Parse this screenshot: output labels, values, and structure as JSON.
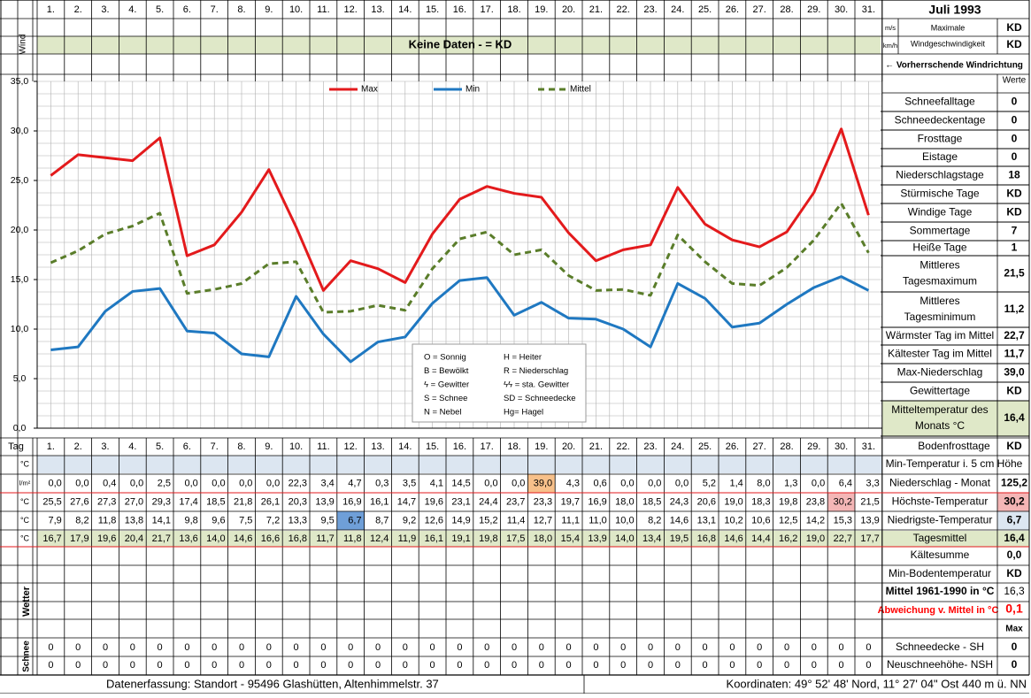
{
  "title": "Juli 1993",
  "days": [
    "1.",
    "2.",
    "3.",
    "4.",
    "5.",
    "6.",
    "7.",
    "8.",
    "9.",
    "10.",
    "11.",
    "12.",
    "13.",
    "14.",
    "15.",
    "16.",
    "17.",
    "18.",
    "19.",
    "20.",
    "21.",
    "22.",
    "23.",
    "24.",
    "25.",
    "26.",
    "27.",
    "28.",
    "29.",
    "30.",
    "31."
  ],
  "wind": {
    "label": "Wind",
    "no_data": "Keine Daten -  = KD",
    "unit_ms": "m/s",
    "unit_kmh": "km/h",
    "max_label_1": "Maximale",
    "max_label_2": "Windgeschwindigkeit",
    "max_ms": "KD",
    "max_kmh": "KD",
    "direction_label": "← Vorherrschende Windrichtung"
  },
  "legend": {
    "max": "Max",
    "min": "Min",
    "mittel": "Mittel"
  },
  "colors": {
    "max": "#e31a1c",
    "min": "#1f78c1",
    "mittel": "#5a7d2a",
    "header_green": "#dfe8c8",
    "band_blue": "#dce6f1",
    "highlight_orange": "#f7c08a",
    "highlight_pink": "#f4b6b6",
    "highlight_blue": "#6f9fd8",
    "deviation_red": "#ff0000"
  },
  "weather_key": [
    [
      "O = Sonnig",
      "H = Heiter"
    ],
    [
      "B = Bewölkt",
      "R = Niederschlag"
    ],
    [
      "ϟ = Gewitter",
      "ϟϟ = sta. Gewitter"
    ],
    [
      "S = Schnee",
      "SD = Schneedecke"
    ],
    [
      "N = Nebel",
      "Hg= Hagel"
    ]
  ],
  "stats_header": "Werte",
  "stats": [
    {
      "label": "Schneefalltage",
      "value": "0"
    },
    {
      "label": "Schneedeckentage",
      "value": "0"
    },
    {
      "label": "Frosttage",
      "value": "0"
    },
    {
      "label": "Eistage",
      "value": "0"
    },
    {
      "label": "Niederschlagstage",
      "value": "18"
    },
    {
      "label": "Stürmische Tage",
      "value": "KD"
    },
    {
      "label": "Windige Tage",
      "value": "KD"
    },
    {
      "label": "Sommertage",
      "value": "7"
    },
    {
      "label": "Heiße Tage",
      "value": "1"
    },
    {
      "label": "Mittleres Tagesmaximum",
      "value": "21,5"
    },
    {
      "label": "Mittleres Tagesminimum",
      "value": "11,2"
    },
    {
      "label": "Wärmster Tag im Mittel",
      "value": "22,7"
    },
    {
      "label": "Kältester Tag im Mittel",
      "value": "11,7"
    },
    {
      "label": "Max-Niederschlag",
      "value": "39,0"
    },
    {
      "label": "Gewittertage",
      "value": "KD"
    },
    {
      "label": "Mitteltemperatur des Monats °C",
      "value": "16,4"
    }
  ],
  "table": {
    "tag_label": "Tag",
    "unit_c": "°C",
    "unit_lm2": "l/m²",
    "boden_label": "Bodenfrosttage",
    "boden_value": "KD",
    "min5_label": "Min-Temperatur i. 5 cm Höhe",
    "rows": [
      {
        "key": "niederschlag",
        "unit": "l/m²",
        "label": "Niederschlag - Monat",
        "total": "125,2",
        "values": [
          "0,0",
          "0,0",
          "0,4",
          "0,0",
          "2,5",
          "0,0",
          "0,0",
          "0,0",
          "0,0",
          "22,3",
          "3,4",
          "4,7",
          "0,3",
          "3,5",
          "4,1",
          "14,5",
          "0,0",
          "0,0",
          "39,0",
          "4,3",
          "0,6",
          "0,0",
          "0,0",
          "0,0",
          "5,2",
          "1,4",
          "8,0",
          "1,3",
          "0,0",
          "6,4",
          "3,3"
        ]
      },
      {
        "key": "hoechst",
        "unit": "°C",
        "label": "Höchste-Temperatur",
        "total": "30,2",
        "values": [
          "25,5",
          "27,6",
          "27,3",
          "27,0",
          "29,3",
          "17,4",
          "18,5",
          "21,8",
          "26,1",
          "20,3",
          "13,9",
          "16,9",
          "16,1",
          "14,7",
          "19,6",
          "23,1",
          "24,4",
          "23,7",
          "23,3",
          "19,7",
          "16,9",
          "18,0",
          "18,5",
          "24,3",
          "20,6",
          "19,0",
          "18,3",
          "19,8",
          "23,8",
          "30,2",
          "21,5"
        ]
      },
      {
        "key": "niedrigst",
        "unit": "°C",
        "label": "Niedrigste-Temperatur",
        "total": "6,7",
        "values": [
          "7,9",
          "8,2",
          "11,8",
          "13,8",
          "14,1",
          "9,8",
          "9,6",
          "7,5",
          "7,2",
          "13,3",
          "9,5",
          "6,7",
          "8,7",
          "9,2",
          "12,6",
          "14,9",
          "15,2",
          "11,4",
          "12,7",
          "11,1",
          "11,0",
          "10,0",
          "8,2",
          "14,6",
          "13,1",
          "10,2",
          "10,6",
          "12,5",
          "14,2",
          "15,3",
          "13,9"
        ]
      },
      {
        "key": "tagesmittel",
        "unit": "°C",
        "label": "Tagesmittel",
        "total": "16,4",
        "values": [
          "16,7",
          "17,9",
          "19,6",
          "20,4",
          "21,7",
          "13,6",
          "14,0",
          "14,6",
          "16,6",
          "16,8",
          "11,7",
          "11,8",
          "12,4",
          "11,9",
          "16,1",
          "19,1",
          "19,8",
          "17,5",
          "18,0",
          "15,4",
          "13,9",
          "14,0",
          "13,4",
          "19,5",
          "16,8",
          "14,6",
          "14,4",
          "16,2",
          "19,0",
          "22,7",
          "17,7"
        ]
      }
    ],
    "kaeltesumme_label": "Kältesumme",
    "kaeltesumme_value": "0,0",
    "minboden_label": "Min-Bodentemperatur",
    "minboden_value": "KD",
    "mittel_label": "Mittel 1961-1990 in °C",
    "mittel_value": "16,3",
    "abweichung_label": "Abweichung v. Mittel in °C",
    "abweichung_value": "0,1",
    "wetter_label": "Wetter",
    "schnee_label": "Schnee",
    "max_header": "Max",
    "schneedecke_label": "Schneedecke -   SH",
    "schneedecke_value": "0",
    "neuschnee_label": "Neuschneehöhe- NSH",
    "neuschnee_value": "0",
    "schneedecke_values": [
      "0",
      "0",
      "0",
      "0",
      "0",
      "0",
      "0",
      "0",
      "0",
      "0",
      "0",
      "0",
      "0",
      "0",
      "0",
      "0",
      "0",
      "0",
      "0",
      "0",
      "0",
      "0",
      "0",
      "0",
      "0",
      "0",
      "0",
      "0",
      "0",
      "0",
      "0"
    ],
    "neuschnee_values": [
      "0",
      "0",
      "0",
      "0",
      "0",
      "0",
      "0",
      "0",
      "0",
      "0",
      "0",
      "0",
      "0",
      "0",
      "0",
      "0",
      "0",
      "0",
      "0",
      "0",
      "0",
      "0",
      "0",
      "0",
      "0",
      "0",
      "0",
      "0",
      "0",
      "0",
      "0"
    ]
  },
  "footer": {
    "left": "Datenerfassung:  Standort -   95496  Glashütten, Altenhimmelstr. 37",
    "right": "Koordinaten:  49° 52' 48' Nord,  11° 27' 04\" Ost   440 m ü. NN"
  },
  "chart_data": {
    "type": "line",
    "categories": [
      "1.",
      "2.",
      "3.",
      "4.",
      "5.",
      "6.",
      "7.",
      "8.",
      "9.",
      "10.",
      "11.",
      "12.",
      "13.",
      "14.",
      "15.",
      "16.",
      "17.",
      "18.",
      "19.",
      "20.",
      "21.",
      "22.",
      "23.",
      "24.",
      "25.",
      "26.",
      "27.",
      "28.",
      "29.",
      "30.",
      "31."
    ],
    "series": [
      {
        "name": "Max",
        "values": [
          25.5,
          27.6,
          27.3,
          27.0,
          29.3,
          17.4,
          18.5,
          21.8,
          26.1,
          20.3,
          13.9,
          16.9,
          16.1,
          14.7,
          19.6,
          23.1,
          24.4,
          23.7,
          23.3,
          19.7,
          16.9,
          18.0,
          18.5,
          24.3,
          20.6,
          19.0,
          18.3,
          19.8,
          23.8,
          30.2,
          21.5
        ]
      },
      {
        "name": "Min",
        "values": [
          7.9,
          8.2,
          11.8,
          13.8,
          14.1,
          9.8,
          9.6,
          7.5,
          7.2,
          13.3,
          9.5,
          6.7,
          8.7,
          9.2,
          12.6,
          14.9,
          15.2,
          11.4,
          12.7,
          11.1,
          11.0,
          10.0,
          8.2,
          14.6,
          13.1,
          10.2,
          10.6,
          12.5,
          14.2,
          15.3,
          13.9
        ]
      },
      {
        "name": "Mittel",
        "values": [
          16.7,
          17.9,
          19.6,
          20.4,
          21.7,
          13.6,
          14.0,
          14.6,
          16.6,
          16.8,
          11.7,
          11.8,
          12.4,
          11.9,
          16.1,
          19.1,
          19.8,
          17.5,
          18.0,
          15.4,
          13.9,
          14.0,
          13.4,
          19.5,
          16.8,
          14.6,
          14.4,
          16.2,
          19.0,
          22.7,
          17.7
        ]
      }
    ],
    "yticks": [
      "35,0",
      "30,0",
      "25,0",
      "20,0",
      "15,0",
      "10,0",
      "5,0",
      "0,0"
    ],
    "ylim": [
      0,
      35
    ],
    "grid": true,
    "legend": "top"
  }
}
